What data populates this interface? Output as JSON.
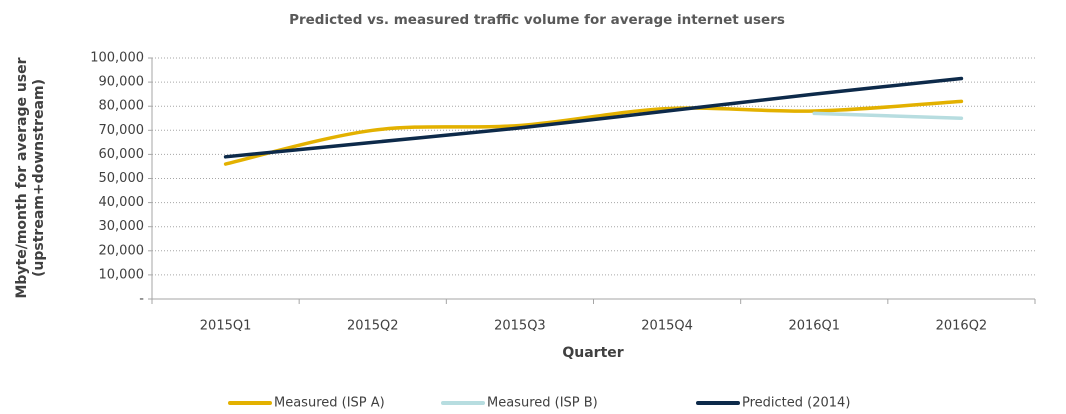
{
  "chart_data": {
    "type": "line",
    "title": "Predicted vs. measured traffic volume for average internet users",
    "xlabel": "Quarter",
    "ylabel_lines": [
      "Mbyte/month for average user",
      "(upstream+downstream)"
    ],
    "categories": [
      "2015Q1",
      "2015Q2",
      "2015Q3",
      "2015Q4",
      "2016Q1",
      "2016Q2"
    ],
    "series": [
      {
        "name": "Measured (ISP A)",
        "color": "#e3b100",
        "values": [
          56000,
          70000,
          72000,
          79000,
          78000,
          82000
        ]
      },
      {
        "name": "Measured (ISP B)",
        "color": "#b7dde0",
        "values": [
          null,
          null,
          null,
          null,
          77000,
          75000
        ]
      },
      {
        "name": "Predicted (2014)",
        "color": "#0d2a4a",
        "values": [
          59000,
          65000,
          71000,
          78000,
          85000,
          91500
        ]
      }
    ],
    "ylim": [
      0,
      100000
    ],
    "yticks": [
      {
        "value": 0,
        "label": "-"
      },
      {
        "value": 10000,
        "label": "10,000"
      },
      {
        "value": 20000,
        "label": "20,000"
      },
      {
        "value": 30000,
        "label": "30,000"
      },
      {
        "value": 40000,
        "label": "40,000"
      },
      {
        "value": 50000,
        "label": "50,000"
      },
      {
        "value": 60000,
        "label": "60,000"
      },
      {
        "value": 70000,
        "label": "70,000"
      },
      {
        "value": 80000,
        "label": "80,000"
      },
      {
        "value": 90000,
        "label": "90,000"
      },
      {
        "value": 100000,
        "label": "100,000"
      }
    ],
    "grid": true,
    "smooth": true,
    "legend": "bottom"
  }
}
